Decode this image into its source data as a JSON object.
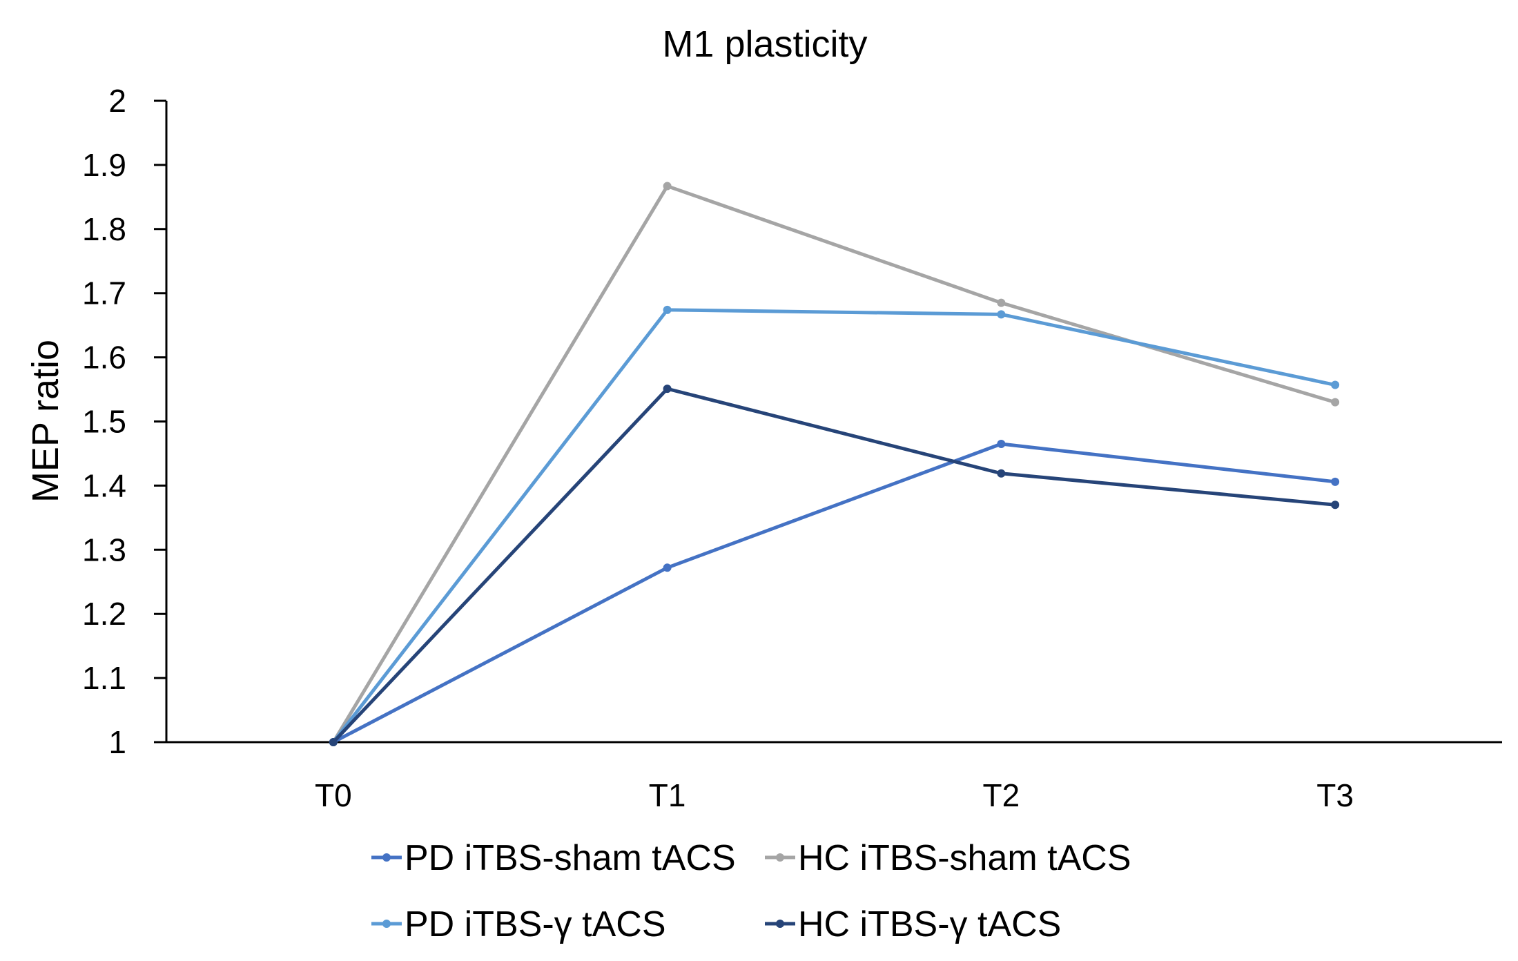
{
  "chart_data": {
    "type": "line",
    "title": "M1 plasticity",
    "xlabel": "",
    "ylabel": "MEP ratio",
    "categories": [
      "T0",
      "T1",
      "T2",
      "T3"
    ],
    "ylim": [
      1,
      2
    ],
    "yticks": [
      "1",
      "1.1",
      "1.2",
      "1.3",
      "1.4",
      "1.5",
      "1.6",
      "1.7",
      "1.8",
      "1.9",
      "2"
    ],
    "ytick_values": [
      1,
      1.1,
      1.2,
      1.3,
      1.4,
      1.5,
      1.6,
      1.7,
      1.8,
      1.9,
      2
    ],
    "grid": false,
    "legend_position": "bottom",
    "series": [
      {
        "name": "PD iTBS-sham tACS",
        "color": "#4472C4",
        "values": [
          1,
          1.272,
          1.465,
          1.406
        ]
      },
      {
        "name": "HC iTBS-sham tACS",
        "color": "#A5A5A5",
        "values": [
          1,
          1.867,
          1.685,
          1.53
        ]
      },
      {
        "name": "PD iTBS-γ tACS",
        "color": "#5B9BD5",
        "values": [
          1,
          1.674,
          1.667,
          1.557
        ]
      },
      {
        "name": "HC iTBS-γ tACS",
        "color": "#264478",
        "values": [
          1,
          1.551,
          1.419,
          1.37
        ]
      }
    ]
  }
}
